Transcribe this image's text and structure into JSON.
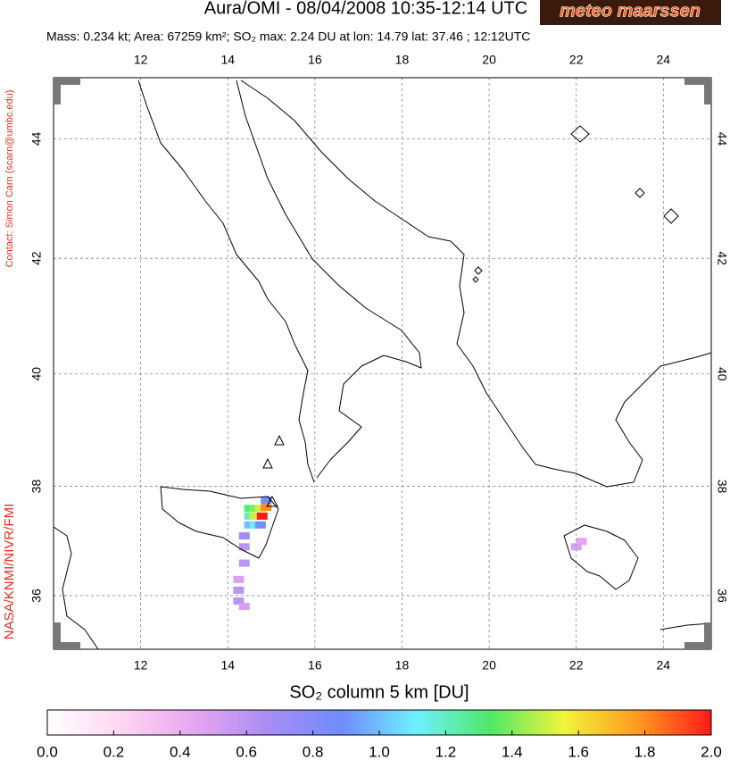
{
  "header": {
    "title": "Aura/OMI - 08/04/2008 10:35-12:14 UTC",
    "subtitle": "Mass: 0.234 kt; Area: 67259 km²; SO₂ max: 2.24 DU at lon: 14.79 lat: 37.46 ; 12:12UTC",
    "logo": "meteo maarssen",
    "contact": "Contact: Simon Carn (scarn@umbc.edu)",
    "credit": "NASA/KNMI/NIVR/FMI"
  },
  "map": {
    "xlim": [
      10,
      25.1
    ],
    "ylim": [
      35,
      45
    ],
    "xticks": [
      12,
      14,
      16,
      18,
      20,
      22,
      24
    ],
    "yticks": [
      36,
      38,
      40,
      42,
      44
    ],
    "cells": [
      {
        "lon": 14.5,
        "lat": 37.6,
        "value": 1.3
      },
      {
        "lon": 14.62,
        "lat": 37.6,
        "value": 1.4
      },
      {
        "lon": 14.75,
        "lat": 37.6,
        "value": 1.5
      },
      {
        "lon": 14.88,
        "lat": 37.62,
        "value": 1.8
      },
      {
        "lon": 14.5,
        "lat": 37.46,
        "value": 1.2
      },
      {
        "lon": 14.62,
        "lat": 37.46,
        "value": 1.5
      },
      {
        "lon": 14.79,
        "lat": 37.46,
        "value": 2.24
      },
      {
        "lon": 14.5,
        "lat": 37.3,
        "value": 1.0
      },
      {
        "lon": 14.62,
        "lat": 37.3,
        "value": 1.1
      },
      {
        "lon": 14.75,
        "lat": 37.3,
        "value": 0.9
      },
      {
        "lon": 14.88,
        "lat": 37.75,
        "value": 0.9
      },
      {
        "lon": 14.38,
        "lat": 37.1,
        "value": 0.7
      },
      {
        "lon": 14.38,
        "lat": 36.9,
        "value": 0.6
      },
      {
        "lon": 14.38,
        "lat": 36.6,
        "value": 0.6
      },
      {
        "lon": 14.25,
        "lat": 36.3,
        "value": 0.5
      },
      {
        "lon": 14.25,
        "lat": 36.1,
        "value": 0.6
      },
      {
        "lon": 14.25,
        "lat": 35.9,
        "value": 0.6
      },
      {
        "lon": 14.38,
        "lat": 35.8,
        "value": 0.5
      },
      {
        "lon": 22.0,
        "lat": 36.9,
        "value": 0.5
      },
      {
        "lon": 22.12,
        "lat": 37.0,
        "value": 0.45
      }
    ]
  },
  "colorbar": {
    "label": "SO₂ column 5 km [DU]",
    "range": [
      0,
      2
    ],
    "colors": [
      "#ffffff",
      "#ffd6f2",
      "#e6a6f0",
      "#a98cf5",
      "#6f8cff",
      "#6ff0ff",
      "#4fe86a",
      "#f0f53a",
      "#ff9a20",
      "#ff1a1a"
    ],
    "ticks": [
      {
        "value": 0,
        "label": "0.0"
      },
      {
        "value": 0.2,
        "label": "0.2"
      },
      {
        "value": 0.4,
        "label": "0.4"
      },
      {
        "value": 0.6,
        "label": "0.6"
      },
      {
        "value": 0.8,
        "label": "0.8"
      },
      {
        "value": 1,
        "label": "1.0"
      },
      {
        "value": 1.2,
        "label": "1.2"
      },
      {
        "value": 1.4,
        "label": "1.4"
      },
      {
        "value": 1.6,
        "label": "1.6"
      },
      {
        "value": 1.8,
        "label": "1.8"
      },
      {
        "value": 2,
        "label": "2.0"
      }
    ]
  }
}
